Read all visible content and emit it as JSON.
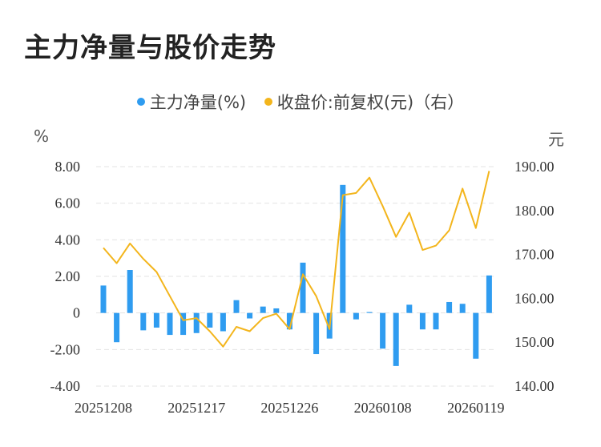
{
  "title": "主力净量与股价走势",
  "legend": {
    "net": "主力净量(%)",
    "price": "收盘价:前复权(元)（右）"
  },
  "colors": {
    "bar": "#2f9cf0",
    "line": "#f3b51c",
    "grid": "#e3e3e3"
  },
  "chart_data": {
    "type": "bar+line",
    "title": "主力净量与股价走势",
    "left_axis": {
      "unit": "%",
      "ticks": [
        "8.00",
        "6.00",
        "4.00",
        "2.00",
        "0",
        "-2.00",
        "-4.00"
      ],
      "ylim": [
        -4,
        8
      ]
    },
    "right_axis": {
      "unit": "元",
      "ticks": [
        "190.00",
        "180.00",
        "170.00",
        "160.00",
        "150.00",
        "140.00"
      ],
      "ylim": [
        140,
        190
      ]
    },
    "x_ticks": [
      {
        "index": 0,
        "label": "20251208"
      },
      {
        "index": 7,
        "label": "20251217"
      },
      {
        "index": 14,
        "label": "20251226"
      },
      {
        "index": 21,
        "label": "20260108"
      },
      {
        "index": 28,
        "label": "20260119"
      }
    ],
    "series": [
      {
        "name": "主力净量(%)",
        "axis": "left",
        "type": "bar",
        "values": [
          1.5,
          -1.6,
          2.35,
          -0.95,
          -0.8,
          -1.2,
          -1.2,
          -1.1,
          -0.8,
          -1.0,
          0.7,
          -0.3,
          0.35,
          0.25,
          -0.9,
          2.75,
          -2.25,
          -1.4,
          7.0,
          -0.35,
          0.05,
          -1.95,
          -2.9,
          0.45,
          -0.9,
          -0.9,
          0.6,
          0.5,
          -2.5,
          2.05
        ]
      },
      {
        "name": "收盘价:前复权(元)（右）",
        "axis": "right",
        "type": "line",
        "values": [
          171.5,
          168.0,
          172.5,
          169.0,
          166.0,
          160.5,
          155.0,
          155.5,
          152.5,
          149.0,
          153.5,
          152.5,
          155.5,
          156.5,
          153.0,
          165.5,
          160.5,
          153.0,
          183.5,
          184.0,
          187.5,
          181.0,
          174.0,
          179.5,
          171.0,
          172.0,
          175.5,
          185.0,
          176.0,
          189.0
        ]
      }
    ]
  }
}
